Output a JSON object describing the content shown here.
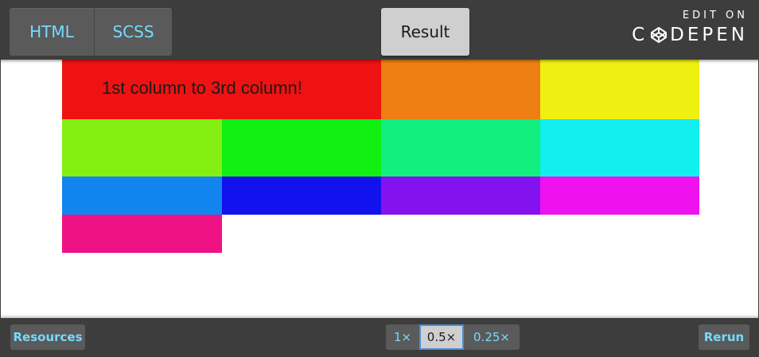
{
  "topbar": {
    "tabs": [
      {
        "label": "HTML"
      },
      {
        "label": "SCSS"
      }
    ],
    "result_label": "Result",
    "edit_on_label": "EDIT ON",
    "codepen_left": "C",
    "codepen_right": "DEPEN"
  },
  "result": {
    "cell_text": "1st column to 3rd column!",
    "colors": {
      "red": "#ef1212",
      "orange": "#ef7f12",
      "yellow": "#efef12",
      "lime": "#84ef12",
      "green": "#12ef12",
      "mint": "#12ef7f",
      "cyan": "#12efef",
      "blue": "#1284ef",
      "navy": "#1212ef",
      "violet": "#8412ef",
      "magenta": "#ef12ef",
      "pink": "#ef1284"
    }
  },
  "bottombar": {
    "resources_label": "Resources",
    "zoom_options": [
      "1×",
      "0.5×",
      "0.25×"
    ],
    "zoom_selected": "0.5×",
    "rerun_label": "Rerun"
  },
  "colors": {
    "bar_bg": "#3d3d3d",
    "button_bg": "#5a5a5a",
    "accent_text": "#76daff",
    "active_bg": "#cfcfcf"
  }
}
